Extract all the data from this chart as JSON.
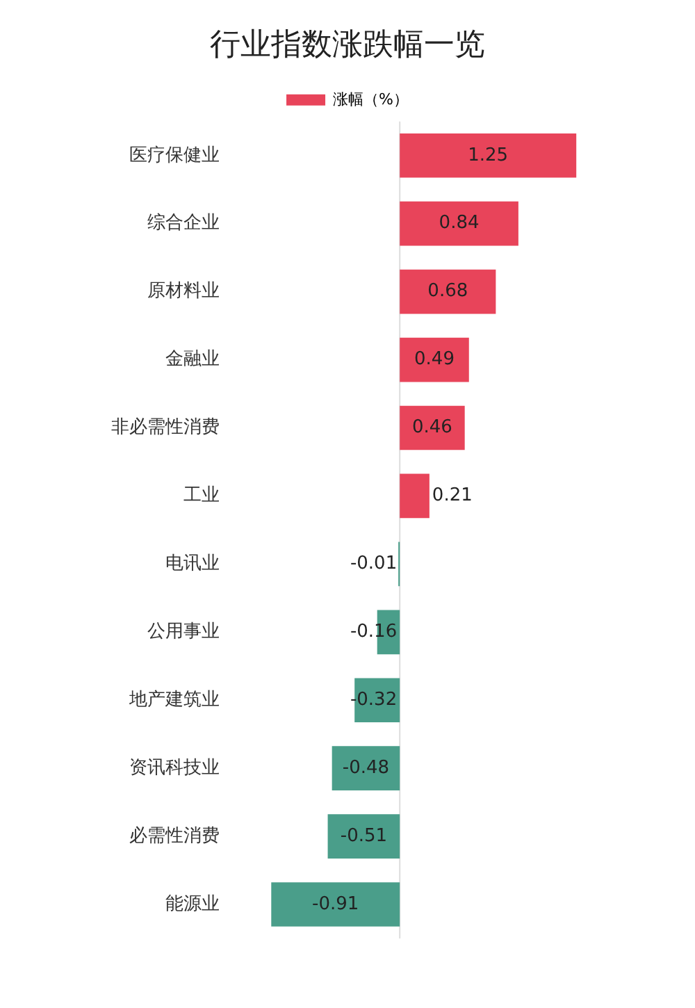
{
  "chart_data": {
    "type": "bar",
    "orientation": "horizontal",
    "title": "行业指数涨跌幅一览",
    "categories": [
      "医疗保健业",
      "综合企业",
      "原材料业",
      "金融业",
      "非必需性消费",
      "工业",
      "电讯业",
      "公用事业",
      "地产建筑业",
      "资讯科技业",
      "必需性消费",
      "能源业"
    ],
    "series": [
      {
        "name": "涨幅（%）",
        "color": "#e8445a",
        "colors": [
          "#e8445a",
          "#e8445a",
          "#e8445a",
          "#e8445a",
          "#e8445a",
          "#e8445a",
          "#4a9e8a",
          "#4a9e8a",
          "#4a9e8a",
          "#4a9e8a",
          "#4a9e8a",
          "#4a9e8a"
        ],
        "values": [
          1.25,
          0.84,
          0.68,
          0.49,
          0.46,
          0.21,
          -0.01,
          -0.16,
          -0.32,
          -0.48,
          -0.51,
          -0.91
        ]
      }
    ],
    "data_labels": true,
    "legend": "top",
    "grid": false
  }
}
